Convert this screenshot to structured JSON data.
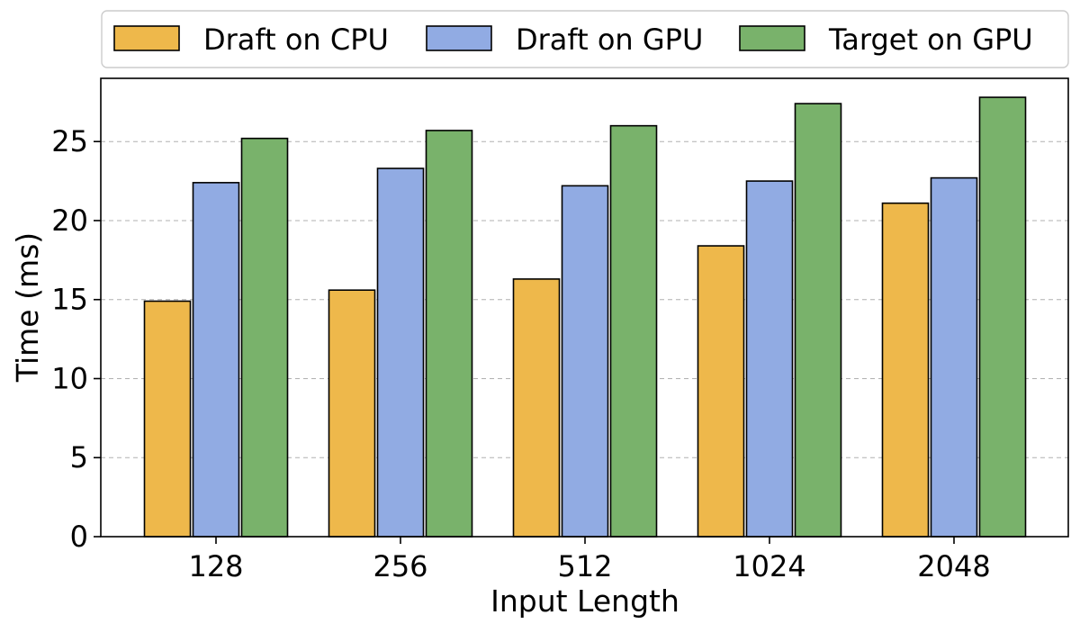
{
  "chart_data": {
    "type": "bar",
    "title": "",
    "xlabel": "Input Length",
    "ylabel": "Time (ms)",
    "categories": [
      "128",
      "256",
      "512",
      "1024",
      "2048"
    ],
    "ylim": [
      0,
      29
    ],
    "yticks": [
      0,
      5,
      10,
      15,
      20,
      25
    ],
    "grid": "horizontal dashed",
    "legend_position": "top (above plot)",
    "series": [
      {
        "name": "Draft on CPU",
        "color": "#EEB84B",
        "values": [
          14.9,
          15.6,
          16.3,
          18.4,
          21.1
        ]
      },
      {
        "name": "Draft on GPU",
        "color": "#91ABE3",
        "values": [
          22.4,
          23.3,
          22.2,
          22.5,
          22.7
        ]
      },
      {
        "name": "Target on GPU",
        "color": "#79B26B",
        "values": [
          25.2,
          25.7,
          26.0,
          27.4,
          27.8
        ]
      }
    ]
  }
}
